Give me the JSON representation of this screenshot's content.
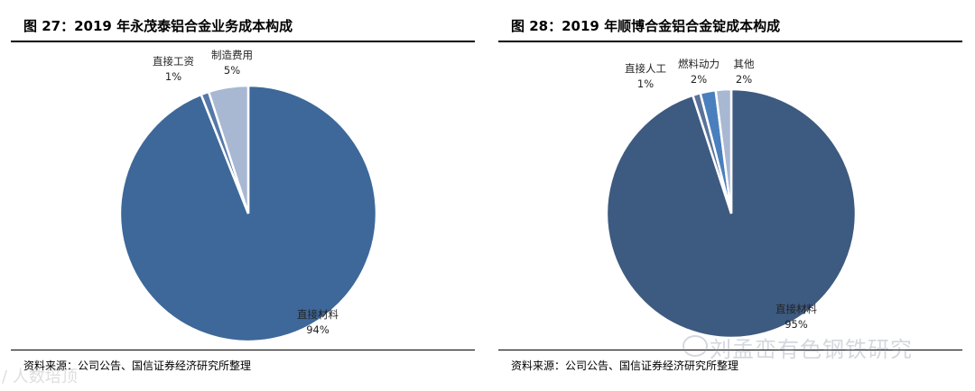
{
  "chart_data": [
    {
      "type": "pie",
      "title": "图 27：2019 年永茂泰铝合金业务成本构成",
      "source": "资料来源：公司公告、国信证券经济研究所整理",
      "slices": [
        {
          "name": "直接材料",
          "value": 94,
          "label": "94%",
          "color": "#3d6899"
        },
        {
          "name": "直接工资",
          "value": 1,
          "label": "1%",
          "color": "#5578a8"
        },
        {
          "name": "制造费用",
          "value": 5,
          "label": "5%",
          "color": "#a8b8d3"
        }
      ]
    },
    {
      "type": "pie",
      "title": "图 28：2019 年顺博合金铝合金锭成本构成",
      "source": "资料来源：公司公告、国信证券经济研究所整理",
      "slices": [
        {
          "name": "直接材料",
          "value": 95,
          "label": "95%",
          "color": "#3d5a80"
        },
        {
          "name": "直接人工",
          "value": 1,
          "label": "1%",
          "color": "#5a7299"
        },
        {
          "name": "燃料动力",
          "value": 2,
          "label": "2%",
          "color": "#4a7fbe"
        },
        {
          "name": "其他",
          "value": 2,
          "label": "2%",
          "color": "#a8b8d3"
        }
      ]
    }
  ],
  "watermark": {
    "right": "刘孟峦有色钢铁研究",
    "left": "/ 人数培顶"
  }
}
